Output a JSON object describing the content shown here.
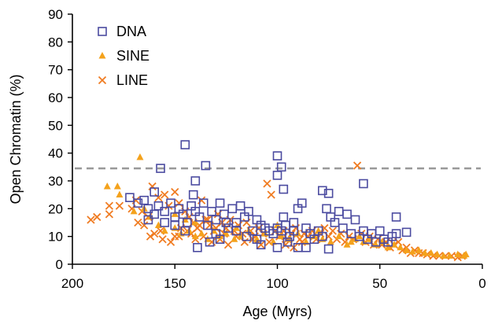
{
  "chart_data": {
    "type": "scatter",
    "title": "",
    "xlabel": "Age (Myrs)",
    "ylabel": "Open Chromatin (%)",
    "xlim": [
      200,
      0
    ],
    "ylim": [
      0,
      90
    ],
    "x_ticks": [
      200,
      150,
      100,
      50,
      0
    ],
    "y_ticks": [
      0,
      10,
      20,
      30,
      40,
      50,
      60,
      70,
      80,
      90
    ],
    "x_tick_labels": [
      "200",
      "150",
      "100",
      "50",
      "0"
    ],
    "y_tick_labels": [
      "0",
      "10",
      "20",
      "30",
      "40",
      "50",
      "60",
      "70",
      "80",
      "90"
    ],
    "grid": false,
    "legend_position": "top-left",
    "reference_line": {
      "y": 34.5,
      "style": "dashed",
      "color": "#999999"
    },
    "colors": {
      "DNA": "#4b4ba0",
      "SINE": "#f4a21c",
      "LINE": "#f07c22",
      "axis": "#000000"
    },
    "series": [
      {
        "name": "DNA",
        "marker": "square",
        "points": [
          [
            145,
            43
          ],
          [
            100,
            39
          ],
          [
            98,
            35
          ],
          [
            135,
            35.5
          ],
          [
            157,
            34.5
          ],
          [
            100,
            32
          ],
          [
            58,
            29
          ],
          [
            97,
            27
          ],
          [
            78,
            26.5
          ],
          [
            75,
            25.5
          ],
          [
            140,
            30
          ],
          [
            160,
            26
          ],
          [
            172,
            24
          ],
          [
            168,
            22
          ],
          [
            165,
            23
          ],
          [
            163,
            20
          ],
          [
            158,
            21
          ],
          [
            155,
            19
          ],
          [
            152,
            22
          ],
          [
            150,
            17
          ],
          [
            148,
            20
          ],
          [
            146,
            18
          ],
          [
            144,
            15
          ],
          [
            142,
            21
          ],
          [
            140,
            19
          ],
          [
            138,
            17
          ],
          [
            136,
            22
          ],
          [
            134,
            14
          ],
          [
            132,
            19
          ],
          [
            130,
            16
          ],
          [
            128,
            22
          ],
          [
            126,
            18
          ],
          [
            124,
            13
          ],
          [
            122,
            20
          ],
          [
            120,
            15
          ],
          [
            118,
            21
          ],
          [
            116,
            17
          ],
          [
            114,
            19
          ],
          [
            112,
            12
          ],
          [
            110,
            16
          ],
          [
            108,
            14
          ],
          [
            106,
            13
          ],
          [
            104,
            12
          ],
          [
            102,
            11
          ],
          [
            100,
            13
          ],
          [
            98,
            12
          ],
          [
            96,
            14
          ],
          [
            94,
            10
          ],
          [
            92,
            12
          ],
          [
            90,
            20
          ],
          [
            88,
            22
          ],
          [
            86,
            13
          ],
          [
            84,
            11
          ],
          [
            82,
            9
          ],
          [
            80,
            12
          ],
          [
            78,
            10
          ],
          [
            76,
            20
          ],
          [
            74,
            17
          ],
          [
            72,
            15
          ],
          [
            70,
            19
          ],
          [
            68,
            13
          ],
          [
            66,
            18
          ],
          [
            64,
            11
          ],
          [
            62,
            16
          ],
          [
            60,
            10
          ],
          [
            58,
            12
          ],
          [
            56,
            9
          ],
          [
            54,
            11
          ],
          [
            52,
            8
          ],
          [
            50,
            12
          ],
          [
            48,
            9
          ],
          [
            46,
            8
          ],
          [
            44,
            10
          ],
          [
            42,
            17
          ],
          [
            42,
            11
          ],
          [
            37,
            11.5
          ],
          [
            110,
            9
          ],
          [
            108,
            7
          ],
          [
            100,
            6
          ],
          [
            95,
            8
          ],
          [
            90,
            6
          ],
          [
            86,
            6
          ],
          [
            75,
            5.5
          ],
          [
            139,
            6
          ],
          [
            133,
            8
          ],
          [
            128,
            9
          ],
          [
            115,
            10
          ],
          [
            120,
            12
          ],
          [
            125,
            15
          ],
          [
            130,
            11
          ],
          [
            155,
            15
          ],
          [
            160,
            18
          ],
          [
            150,
            14
          ],
          [
            145,
            12
          ],
          [
            141,
            25
          ],
          [
            163,
            16
          ],
          [
            97,
            17
          ],
          [
            92,
            15
          ]
        ]
      },
      {
        "name": "SINE",
        "marker": "triangle",
        "points": [
          [
            167,
            38.5
          ],
          [
            177,
            25
          ],
          [
            183,
            28
          ],
          [
            178,
            28
          ],
          [
            170,
            19
          ],
          [
            165,
            20
          ],
          [
            162,
            17
          ],
          [
            158,
            14
          ],
          [
            155,
            12
          ],
          [
            150,
            13
          ],
          [
            147,
            11
          ],
          [
            143,
            12
          ],
          [
            140,
            10
          ],
          [
            137,
            11
          ],
          [
            134,
            9
          ],
          [
            131,
            12
          ],
          [
            128,
            10
          ],
          [
            125,
            11
          ],
          [
            121,
            9
          ],
          [
            118,
            10
          ],
          [
            114,
            12
          ],
          [
            110,
            9
          ],
          [
            106,
            11
          ],
          [
            102,
            8
          ],
          [
            98,
            10
          ],
          [
            94,
            9
          ],
          [
            90,
            11
          ],
          [
            86,
            8
          ],
          [
            82,
            10
          ],
          [
            78,
            9
          ],
          [
            74,
            8
          ],
          [
            70,
            10
          ],
          [
            66,
            7
          ],
          [
            62,
            9
          ],
          [
            58,
            8
          ],
          [
            55,
            9
          ],
          [
            52,
            7
          ],
          [
            49,
            8
          ],
          [
            46,
            6
          ],
          [
            43,
            7
          ],
          [
            40,
            6
          ],
          [
            37,
            5
          ],
          [
            34,
            4.5
          ],
          [
            31,
            5
          ],
          [
            28,
            4
          ],
          [
            25,
            4
          ],
          [
            22,
            3.5
          ],
          [
            19,
            3
          ],
          [
            16,
            3
          ],
          [
            12,
            3.5
          ],
          [
            9,
            3
          ],
          [
            8,
            3.5
          ],
          [
            60,
            10
          ],
          [
            64,
            8
          ],
          [
            80,
            12
          ],
          [
            100,
            14
          ],
          [
            120,
            13
          ],
          [
            140,
            15
          ],
          [
            150,
            18
          ],
          [
            145,
            16
          ]
        ]
      },
      {
        "name": "LINE",
        "marker": "x",
        "points": [
          [
            191,
            16
          ],
          [
            188,
            17
          ],
          [
            182,
            18
          ],
          [
            182,
            21
          ],
          [
            177,
            21
          ],
          [
            171,
            20
          ],
          [
            169,
            23
          ],
          [
            166,
            19
          ],
          [
            165,
            14
          ],
          [
            163,
            17
          ],
          [
            161,
            28
          ],
          [
            158,
            24
          ],
          [
            155,
            25
          ],
          [
            153,
            21
          ],
          [
            150,
            26
          ],
          [
            148,
            22
          ],
          [
            145,
            19
          ],
          [
            143,
            17
          ],
          [
            141,
            15
          ],
          [
            139,
            13
          ],
          [
            137,
            23
          ],
          [
            135,
            16
          ],
          [
            133,
            14
          ],
          [
            131,
            12
          ],
          [
            129,
            18
          ],
          [
            127,
            15
          ],
          [
            125,
            13
          ],
          [
            123,
            16
          ],
          [
            121,
            12
          ],
          [
            119,
            14
          ],
          [
            117,
            11
          ],
          [
            115,
            15
          ],
          [
            113,
            12
          ],
          [
            111,
            10
          ],
          [
            109,
            13
          ],
          [
            107,
            11
          ],
          [
            105,
            29
          ],
          [
            103,
            25
          ],
          [
            101,
            12
          ],
          [
            99,
            10
          ],
          [
            97,
            12
          ],
          [
            95,
            9
          ],
          [
            93,
            11
          ],
          [
            91,
            13
          ],
          [
            89,
            9
          ],
          [
            87,
            11
          ],
          [
            85,
            10
          ],
          [
            83,
            12
          ],
          [
            81,
            9
          ],
          [
            79,
            11
          ],
          [
            77,
            13
          ],
          [
            75,
            10
          ],
          [
            73,
            12
          ],
          [
            71,
            9
          ],
          [
            69,
            11
          ],
          [
            67,
            8
          ],
          [
            65,
            10
          ],
          [
            63,
            9
          ],
          [
            61,
            35.5
          ],
          [
            59,
            11
          ],
          [
            57,
            8
          ],
          [
            55,
            10
          ],
          [
            53,
            7
          ],
          [
            51,
            9
          ],
          [
            49,
            7
          ],
          [
            47,
            8
          ],
          [
            45,
            6
          ],
          [
            43,
            7
          ],
          [
            41,
            8
          ],
          [
            39,
            5
          ],
          [
            37,
            6
          ],
          [
            35,
            4
          ],
          [
            33,
            5
          ],
          [
            31,
            4
          ],
          [
            29,
            4
          ],
          [
            27,
            3.5
          ],
          [
            24,
            3
          ],
          [
            21,
            3
          ],
          [
            18,
            3
          ],
          [
            15,
            3
          ],
          [
            12,
            2.5
          ],
          [
            10,
            3
          ],
          [
            160,
            11
          ],
          [
            156,
            9
          ],
          [
            152,
            8
          ],
          [
            148,
            10
          ],
          [
            144,
            12
          ],
          [
            140,
            9
          ],
          [
            136,
            10
          ],
          [
            132,
            8
          ],
          [
            128,
            9
          ],
          [
            124,
            7
          ],
          [
            120,
            10
          ],
          [
            116,
            8
          ],
          [
            112,
            9
          ],
          [
            108,
            7
          ],
          [
            104,
            8
          ],
          [
            96,
            7
          ],
          [
            92,
            6
          ],
          [
            88,
            8
          ],
          [
            168,
            15
          ],
          [
            162,
            10
          ],
          [
            157,
            12
          ],
          [
            150,
            10
          ],
          [
            147,
            13
          ],
          [
            142,
            11
          ],
          [
            138,
            14
          ],
          [
            134,
            16
          ],
          [
            130,
            13
          ],
          [
            126,
            11
          ]
        ]
      }
    ]
  }
}
